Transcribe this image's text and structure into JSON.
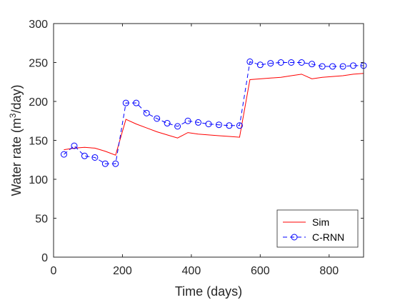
{
  "chart_data": {
    "type": "line",
    "title": "",
    "xlabel": "Time (days)",
    "ylabel_main": "Water rate (m",
    "ylabel_sup": "3",
    "ylabel_tail": "/day)",
    "xlim": [
      0,
      900
    ],
    "ylim": [
      0,
      300
    ],
    "xticks": [
      0,
      200,
      400,
      600,
      800
    ],
    "yticks": [
      0,
      50,
      100,
      150,
      200,
      250,
      300
    ],
    "grid": false,
    "legend_position": "bottom-right",
    "series": [
      {
        "name": "Sim",
        "color": "#ff0000",
        "style": "solid",
        "marker": "none",
        "x": [
          30,
          60,
          90,
          120,
          150,
          180,
          210,
          240,
          270,
          300,
          330,
          360,
          390,
          420,
          450,
          480,
          510,
          540,
          570,
          600,
          630,
          660,
          690,
          720,
          750,
          780,
          810,
          840,
          870,
          900
        ],
        "y": [
          138,
          140,
          141,
          140,
          136,
          131,
          177,
          171,
          166,
          161,
          157,
          153,
          160,
          158,
          157,
          156,
          155,
          154,
          228,
          229,
          230,
          231,
          233,
          235,
          229,
          231,
          232,
          233,
          235,
          236
        ]
      },
      {
        "name": "C-RNN",
        "color": "#0000ff",
        "style": "dashed",
        "marker": "circle",
        "x": [
          30,
          60,
          90,
          120,
          150,
          180,
          210,
          240,
          270,
          300,
          330,
          360,
          390,
          420,
          450,
          480,
          510,
          540,
          570,
          600,
          630,
          660,
          690,
          720,
          750,
          780,
          810,
          840,
          870,
          900
        ],
        "y": [
          132,
          143,
          130,
          128,
          120,
          120,
          198,
          198,
          185,
          178,
          172,
          168,
          175,
          173,
          171,
          170,
          169,
          169,
          251,
          247,
          249,
          250,
          250,
          250,
          248,
          245,
          245,
          245,
          246,
          246
        ]
      }
    ]
  }
}
